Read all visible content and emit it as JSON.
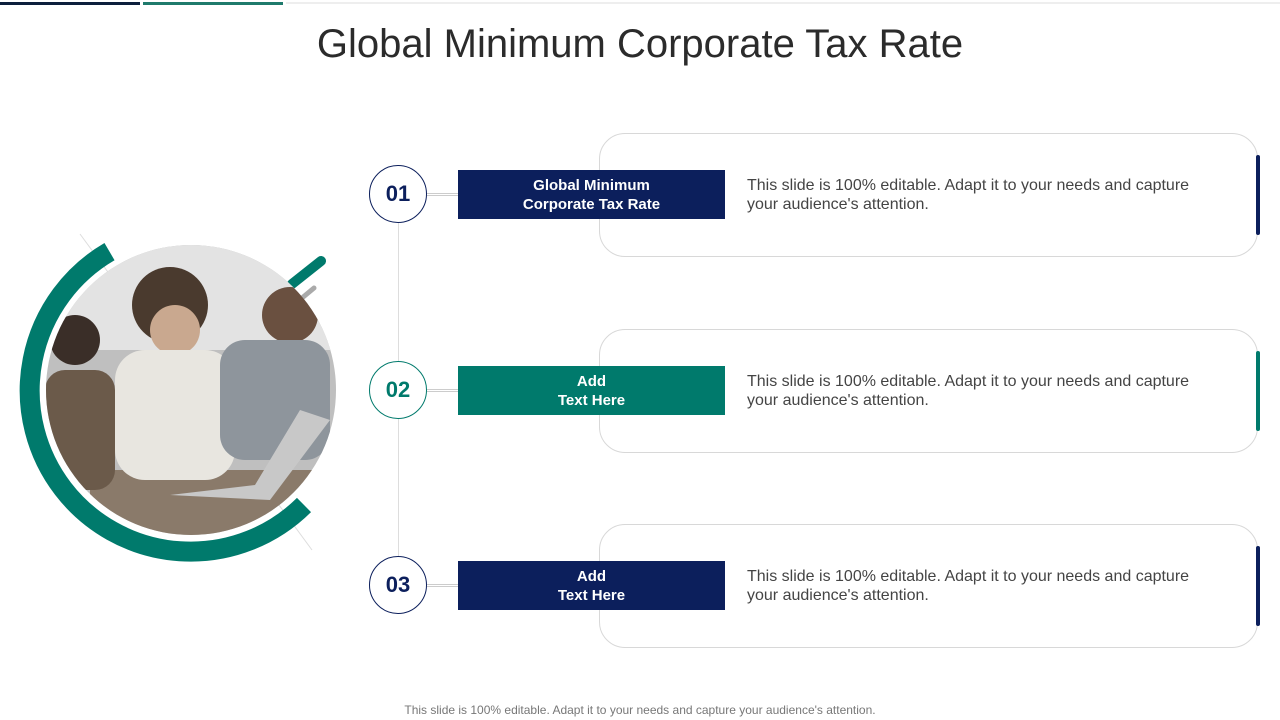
{
  "title": "Global Minimum Corporate Tax Rate",
  "colors": {
    "navy": "#0c1f5c",
    "teal": "#007a6c"
  },
  "items": [
    {
      "number": "01",
      "label": "Global Minimum\nCorporate Tax Rate",
      "description": "This slide is 100% editable. Adapt it to your needs and capture your audience's attention.",
      "color": "navy"
    },
    {
      "number": "02",
      "label": "Add\nText Here",
      "description": "This slide is 100% editable. Adapt it to your needs and capture your audience's attention.",
      "color": "teal"
    },
    {
      "number": "03",
      "label": "Add\nText Here",
      "description": "This slide is 100% editable. Adapt it to your needs and capture your audience's attention.",
      "color": "navy"
    }
  ],
  "image": "people-working-at-laptop-photo",
  "footer": "This slide is 100% editable. Adapt it to your needs and capture your audience's attention."
}
